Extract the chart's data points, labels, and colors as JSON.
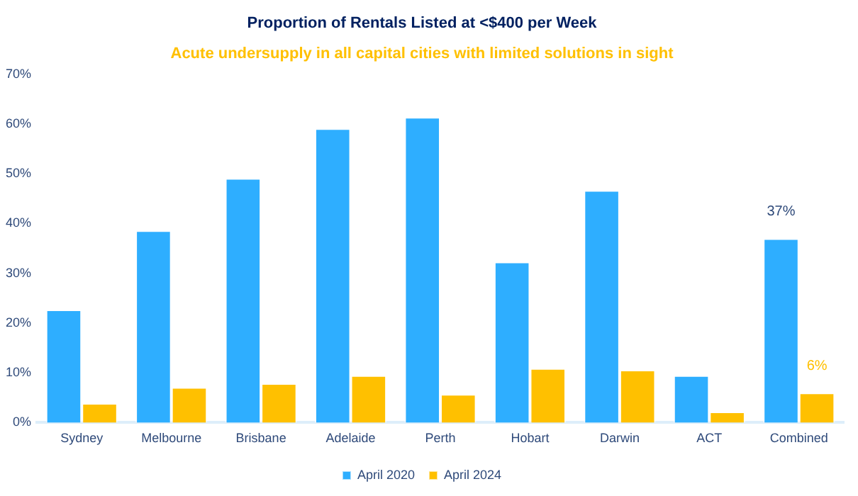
{
  "chart_data": {
    "type": "bar",
    "title": "Proportion of Rentals Listed at <$400 per Week",
    "subtitle": "Acute undersupply in all capital cities with limited solutions in sight",
    "categories": [
      "Sydney",
      "Melbourne",
      "Brisbane",
      "Adelaide",
      "Perth",
      "Hobart",
      "Darwin",
      "ACT",
      "Combined"
    ],
    "series": [
      {
        "name": "April 2020",
        "color": "#2eaeff",
        "values": [
          22.7,
          38.6,
          49.1,
          59.1,
          61.4,
          32.3,
          46.7,
          9.5,
          37
        ],
        "value_labels": [
          null,
          null,
          null,
          null,
          null,
          null,
          null,
          null,
          "37%"
        ]
      },
      {
        "name": "April 2024",
        "color": "#ffc000",
        "values": [
          3.9,
          7.1,
          7.9,
          9.5,
          5.7,
          10.9,
          10.6,
          2.2,
          6
        ],
        "value_labels": [
          null,
          null,
          null,
          null,
          null,
          null,
          null,
          null,
          "6%"
        ]
      }
    ],
    "ylim": [
      0,
      70
    ],
    "yticks": [
      {
        "value": 0,
        "label": "0%"
      },
      {
        "value": 10,
        "label": "10%"
      },
      {
        "value": 20,
        "label": "20%"
      },
      {
        "value": 30,
        "label": "30%"
      },
      {
        "value": 40,
        "label": "40%"
      },
      {
        "value": 50,
        "label": "50%"
      },
      {
        "value": 60,
        "label": "60%"
      },
      {
        "value": 70,
        "label": "70%"
      }
    ],
    "grid": false,
    "legend": "bottom"
  }
}
